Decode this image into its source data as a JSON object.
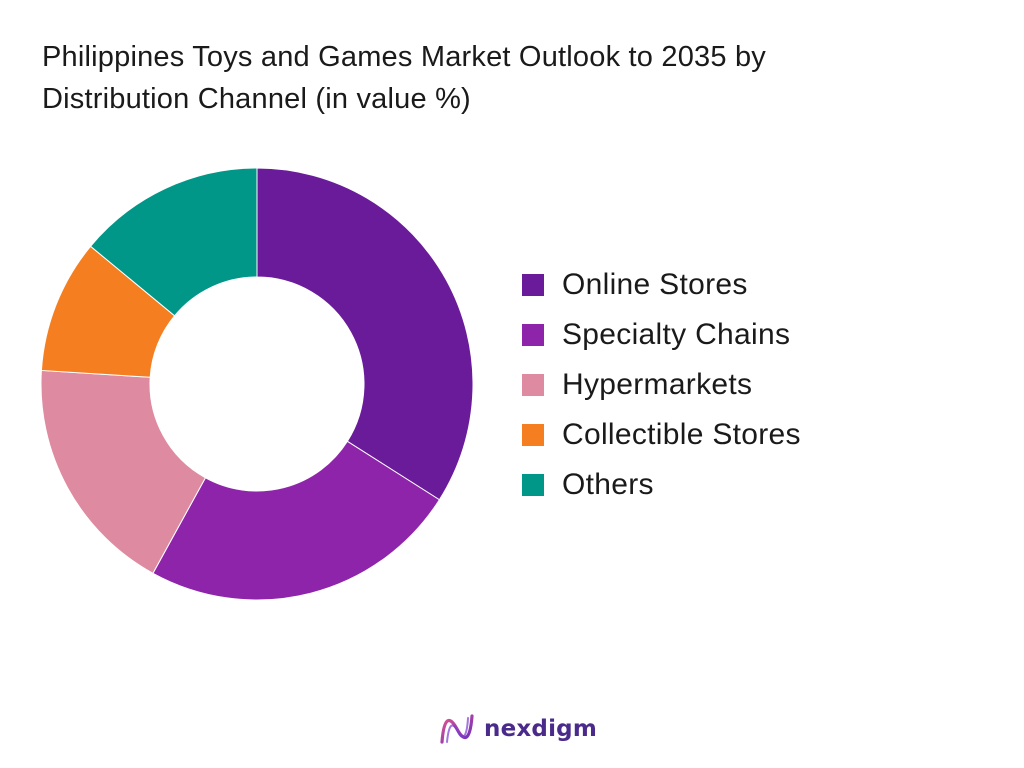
{
  "chart_data": {
    "type": "pie",
    "variant": "donut",
    "title": "Philippines Toys and Games Market Outlook to 2035 by Distribution Channel (in value %)",
    "title_lines": [
      "Philippines Toys and Games Market Outlook to 2035 by",
      "Distribution Channel (in value %)"
    ],
    "legend_position": "right",
    "slices": [
      {
        "label": "Online Stores",
        "value": 34,
        "color": "#6a1b9a"
      },
      {
        "label": "Specialty Chains",
        "value": 24,
        "color": "#8e24aa"
      },
      {
        "label": "Hypermarkets",
        "value": 18,
        "color": "#de8aa0"
      },
      {
        "label": "Collectible Stores",
        "value": 10,
        "color": "#f57f20"
      },
      {
        "label": "Others",
        "value": 14,
        "color": "#009688"
      }
    ]
  },
  "brand": {
    "name": "nexdigm",
    "logo_icon": "nexdigm-logo-icon",
    "color": "#4a2a8a"
  }
}
